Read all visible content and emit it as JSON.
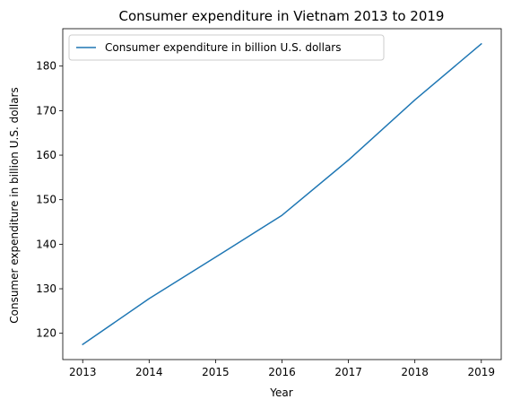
{
  "chart_data": {
    "type": "line",
    "title": "Consumer expenditure in Vietnam 2013 to 2019",
    "xlabel": "Year",
    "ylabel": "Consumer expenditure in billion U.S. dollars",
    "x": [
      2013,
      2014,
      2015,
      2016,
      2017,
      2018,
      2019
    ],
    "x_tick_labels": [
      "2013",
      "2014",
      "2015",
      "2016",
      "2017",
      "2018",
      "2019"
    ],
    "y_ticks": [
      120,
      130,
      140,
      150,
      160,
      170,
      180
    ],
    "y_tick_labels": [
      "120",
      "130",
      "140",
      "150",
      "160",
      "170",
      "180"
    ],
    "xlim": [
      2012.7,
      2019.3
    ],
    "ylim": [
      114.1,
      188.4
    ],
    "grid": false,
    "legend_position": "top-left",
    "series": [
      {
        "name": "Consumer expenditure in billion U.S. dollars",
        "color": "#1f77b4",
        "values": [
          117.5,
          127.8,
          137.1,
          146.5,
          158.9,
          172.4,
          185.0
        ]
      }
    ]
  }
}
